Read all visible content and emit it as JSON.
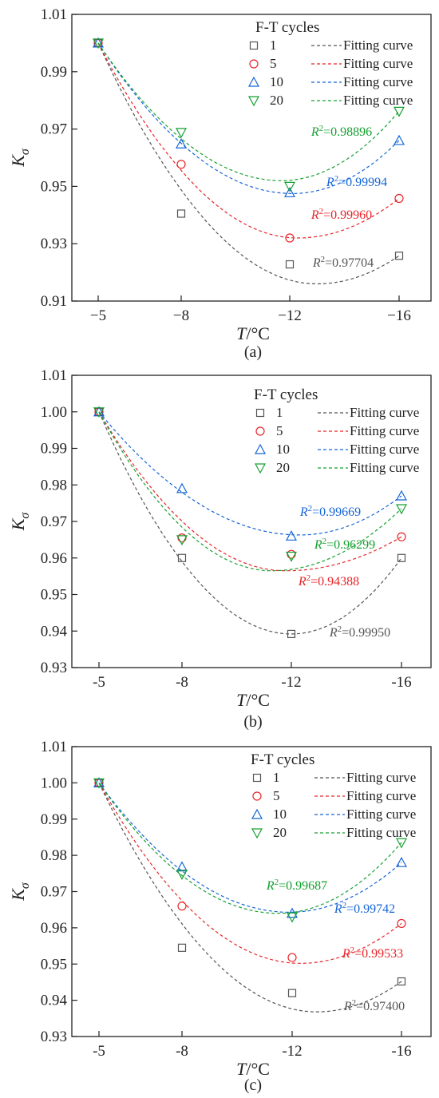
{
  "legend": {
    "title": "F-T cycles",
    "fitting_label": "Fitting curve"
  },
  "chart_data": [
    {
      "type": "scatter",
      "panel": "(a)",
      "xlabel": "T/°C",
      "ylabel": "Kσ",
      "x_categories": [
        "-5",
        "-8",
        "-12",
        "-16"
      ],
      "x_tick_labels": [
        "−5",
        "−8",
        "−12",
        "−16"
      ],
      "ylim": [
        0.91,
        1.01
      ],
      "yticks": [
        0.91,
        0.93,
        0.95,
        0.97,
        0.99,
        1.01
      ],
      "ytick_labels": [
        "0.91",
        "0.93",
        "0.95",
        "0.97",
        "0.99",
        "1.01"
      ],
      "series": [
        {
          "name": "1",
          "color": "#555555",
          "marker": "square",
          "values": [
            1.0,
            0.9405,
            0.9228,
            0.9258
          ],
          "fit_curve": "Fitting curve",
          "r2_label": "R²=0.97704",
          "curve_min": [
            13.0,
            0.916
          ]
        },
        {
          "name": "5",
          "color": "#e8252a",
          "marker": "circle",
          "values": [
            1.0,
            0.9577,
            0.932,
            0.9458
          ],
          "fit_curve": "Fitting curve",
          "r2_label": "R²=0.99960",
          "curve_min": [
            12.3,
            0.932
          ]
        },
        {
          "name": "10",
          "color": "#1565d8",
          "marker": "triangle-up",
          "values": [
            1.0,
            0.9648,
            0.9478,
            0.966
          ],
          "fit_curve": "Fitting curve",
          "r2_label": "R²=0.99994",
          "curve_min": [
            12.1,
            0.9475
          ]
        },
        {
          "name": "20",
          "color": "#15a030",
          "marker": "triangle-down",
          "values": [
            1.0,
            0.9688,
            0.95,
            0.9762
          ],
          "fit_curve": "Fitting curve",
          "r2_label": "R²=0.98896",
          "curve_min": [
            11.7,
            0.952
          ]
        }
      ]
    },
    {
      "type": "scatter",
      "panel": "(b)",
      "xlabel": "T/°C",
      "ylabel": "Kσ",
      "x_categories": [
        "-5",
        "-8",
        "-12",
        "-16"
      ],
      "x_tick_labels": [
        "-5",
        "-8",
        "-12",
        "-16"
      ],
      "ylim": [
        0.93,
        1.01
      ],
      "yticks": [
        0.93,
        0.94,
        0.95,
        0.96,
        0.97,
        0.98,
        0.99,
        1.0,
        1.01
      ],
      "ytick_labels": [
        "0.93",
        "0.94",
        "0.95",
        "0.96",
        "0.97",
        "0.98",
        "0.99",
        "1.00",
        "1.01"
      ],
      "series": [
        {
          "name": "1",
          "color": "#555555",
          "marker": "square",
          "values": [
            1.0,
            0.96,
            0.9392,
            0.96
          ],
          "fit_curve": "Fitting curve",
          "r2_label": "R²=0.99950",
          "curve_min": [
            12.0,
            0.9392
          ]
        },
        {
          "name": "5",
          "color": "#e8252a",
          "marker": "circle",
          "values": [
            1.0,
            0.9655,
            0.961,
            0.9658
          ],
          "fit_curve": "Fitting curve",
          "r2_label": "R²=0.94388",
          "curve_min": [
            11.8,
            0.9565
          ]
        },
        {
          "name": "10",
          "color": "#1565d8",
          "marker": "triangle-up",
          "values": [
            1.0,
            0.979,
            0.966,
            0.977
          ],
          "fit_curve": "Fitting curve",
          "r2_label": "R²=0.99669",
          "curve_min": [
            12.3,
            0.9663
          ]
        },
        {
          "name": "20",
          "color": "#15a030",
          "marker": "triangle-down",
          "values": [
            1.0,
            0.965,
            0.9605,
            0.9735
          ],
          "fit_curve": "Fitting curve",
          "r2_label": "R²=0.96299",
          "curve_min": [
            11.3,
            0.9565
          ]
        }
      ]
    },
    {
      "type": "scatter",
      "panel": "(c)",
      "xlabel": "T/°C",
      "ylabel": "Kσ",
      "x_categories": [
        "-5",
        "-8",
        "-12",
        "-16"
      ],
      "x_tick_labels": [
        "-5",
        "-8",
        "-12",
        "-16"
      ],
      "ylim": [
        0.93,
        1.01
      ],
      "yticks": [
        0.93,
        0.94,
        0.95,
        0.96,
        0.97,
        0.98,
        0.99,
        1.0,
        1.01
      ],
      "ytick_labels": [
        "0.93",
        "0.94",
        "0.95",
        "0.96",
        "0.97",
        "0.98",
        "0.99",
        "1.00",
        "1.01"
      ],
      "series": [
        {
          "name": "1",
          "color": "#555555",
          "marker": "square",
          "values": [
            1.0,
            0.9545,
            0.942,
            0.9452
          ],
          "fit_curve": "Fitting curve",
          "r2_label": "R²=0.97400",
          "curve_min": [
            12.9,
            0.9368
          ]
        },
        {
          "name": "5",
          "color": "#e8252a",
          "marker": "circle",
          "values": [
            1.0,
            0.966,
            0.9518,
            0.9612
          ],
          "fit_curve": "Fitting curve",
          "r2_label": "R²=0.99533",
          "curve_min": [
            12.3,
            0.9502
          ]
        },
        {
          "name": "10",
          "color": "#1565d8",
          "marker": "triangle-up",
          "values": [
            1.0,
            0.9768,
            0.964,
            0.978
          ],
          "fit_curve": "Fitting curve",
          "r2_label": "R²=0.99742",
          "curve_min": [
            11.9,
            0.9643
          ]
        },
        {
          "name": "20",
          "color": "#15a030",
          "marker": "triangle-down",
          "values": [
            1.0,
            0.9748,
            0.963,
            0.9835
          ],
          "fit_curve": "Fitting curve",
          "r2_label": "R²=0.99687",
          "curve_min": [
            11.5,
            0.964
          ]
        }
      ]
    }
  ]
}
